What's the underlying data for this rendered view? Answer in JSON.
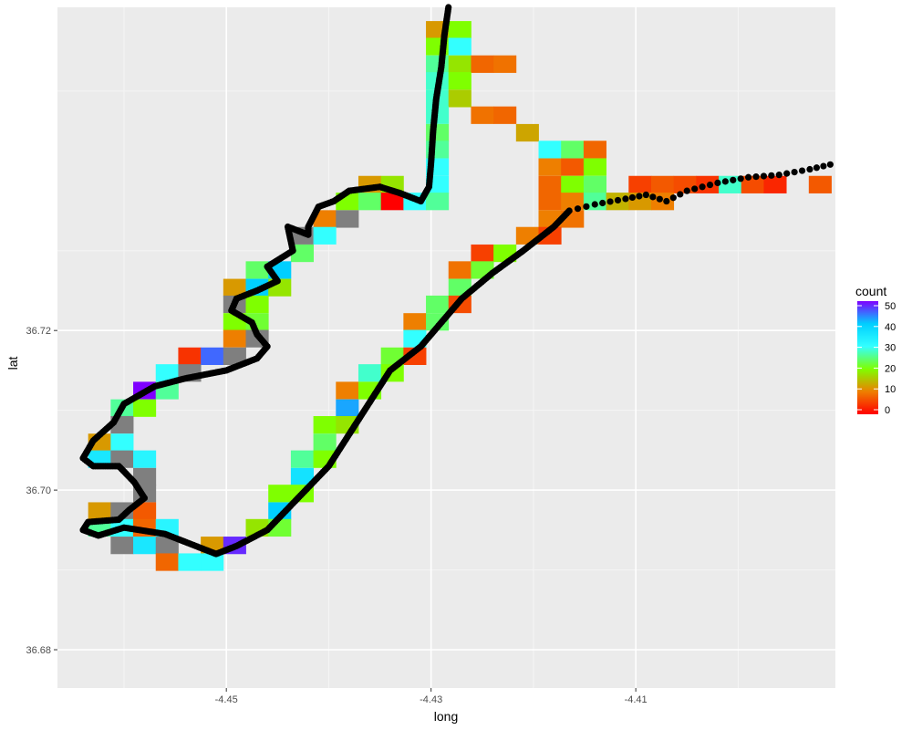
{
  "chart_data": {
    "type": "heatmap",
    "title": "",
    "xlabel": "long",
    "ylabel": "lat",
    "xlim": [
      -4.4665,
      -4.3905
    ],
    "ylim": [
      36.6752,
      36.7605
    ],
    "x_ticks": [
      -4.45,
      -4.43,
      -4.41
    ],
    "x_tick_labels": [
      "-4.45",
      "-4.43",
      "-4.41"
    ],
    "y_ticks": [
      36.68,
      36.7,
      36.72
    ],
    "y_tick_labels": [
      "36.68",
      "36.70",
      "36.72"
    ],
    "grid": true,
    "tile_width": 0.0022,
    "tile_height": 0.00215,
    "na_color": "#7f7f7f",
    "legend": {
      "title": "count",
      "placement": "right",
      "min": 0,
      "max": 50,
      "breaks": [
        0,
        10,
        20,
        30,
        40,
        50
      ],
      "break_labels": [
        "0",
        "10",
        "20",
        "30",
        "40",
        "50"
      ],
      "colors": [
        "#ff0000",
        "#ee7f00",
        "#7fff00",
        "#33ffff",
        "#00cfff",
        "#7f00ff"
      ]
    },
    "tiles": [
      [
        -4.4294,
        36.7577,
        12
      ],
      [
        -4.4272,
        36.7577,
        20
      ],
      [
        -4.4294,
        36.7556,
        20
      ],
      [
        -4.4272,
        36.7556,
        30
      ],
      [
        -4.4294,
        36.7534,
        26
      ],
      [
        -4.4272,
        36.7534,
        18
      ],
      [
        -4.425,
        36.7534,
        8
      ],
      [
        -4.4228,
        36.7534,
        9
      ],
      [
        -4.4294,
        36.7513,
        28
      ],
      [
        -4.4272,
        36.7513,
        20
      ],
      [
        -4.4294,
        36.7491,
        28
      ],
      [
        -4.4272,
        36.7491,
        16
      ],
      [
        -4.4294,
        36.747,
        28
      ],
      [
        -4.425,
        36.747,
        9
      ],
      [
        -4.4228,
        36.747,
        8
      ],
      [
        -4.4294,
        36.7448,
        24
      ],
      [
        -4.4206,
        36.7448,
        13
      ],
      [
        -4.4294,
        36.7427,
        26
      ],
      [
        -4.4184,
        36.7427,
        30
      ],
      [
        -4.4162,
        36.7427,
        24
      ],
      [
        -4.414,
        36.7427,
        8
      ],
      [
        -4.4294,
        36.7405,
        30
      ],
      [
        -4.4184,
        36.7405,
        10
      ],
      [
        -4.4162,
        36.7405,
        7
      ],
      [
        -4.414,
        36.7405,
        20
      ],
      [
        -4.436,
        36.7383,
        12
      ],
      [
        -4.4338,
        36.7383,
        18
      ],
      [
        -4.4294,
        36.7383,
        30
      ],
      [
        -4.4184,
        36.7383,
        8
      ],
      [
        -4.4162,
        36.7383,
        20
      ],
      [
        -4.414,
        36.7383,
        24
      ],
      [
        -4.4096,
        36.7383,
        5
      ],
      [
        -4.4074,
        36.7383,
        7
      ],
      [
        -4.4052,
        36.7383,
        6
      ],
      [
        -4.403,
        36.7383,
        4
      ],
      [
        -4.4008,
        36.7383,
        28
      ],
      [
        -4.3986,
        36.7383,
        6
      ],
      [
        -4.3964,
        36.7383,
        3
      ],
      [
        -4.392,
        36.7383,
        7
      ],
      [
        -4.4382,
        36.7362,
        20
      ],
      [
        -4.436,
        36.7362,
        24
      ],
      [
        -4.4338,
        36.7362,
        0
      ],
      [
        -4.4316,
        36.7362,
        30
      ],
      [
        -4.4294,
        36.7362,
        26
      ],
      [
        -4.4184,
        36.7362,
        8
      ],
      [
        -4.4162,
        36.7362,
        10
      ],
      [
        -4.414,
        36.7362,
        26
      ],
      [
        -4.4118,
        36.7362,
        14
      ],
      [
        -4.4096,
        36.7362,
        12
      ],
      [
        -4.4074,
        36.7362,
        10
      ],
      [
        -4.4404,
        36.734,
        10
      ],
      [
        -4.4382,
        36.734,
        "NA"
      ],
      [
        -4.4184,
        36.734,
        10
      ],
      [
        -4.4162,
        36.734,
        9
      ],
      [
        -4.4426,
        36.7319,
        "NA"
      ],
      [
        -4.4404,
        36.7319,
        30
      ],
      [
        -4.4206,
        36.7319,
        10
      ],
      [
        -4.4184,
        36.7319,
        5
      ],
      [
        -4.4426,
        36.7297,
        24
      ],
      [
        -4.425,
        36.7297,
        5
      ],
      [
        -4.4228,
        36.7297,
        20
      ],
      [
        -4.447,
        36.7276,
        24
      ],
      [
        -4.4448,
        36.7276,
        40
      ],
      [
        -4.4272,
        36.7276,
        9
      ],
      [
        -4.425,
        36.7276,
        22
      ],
      [
        -4.4492,
        36.7254,
        12
      ],
      [
        -4.447,
        36.7254,
        40
      ],
      [
        -4.4448,
        36.7254,
        18
      ],
      [
        -4.4272,
        36.7254,
        24
      ],
      [
        -4.4492,
        36.7233,
        "NA"
      ],
      [
        -4.447,
        36.7233,
        20
      ],
      [
        -4.4294,
        36.7233,
        24
      ],
      [
        -4.4272,
        36.7233,
        6
      ],
      [
        -4.4492,
        36.7211,
        20
      ],
      [
        -4.447,
        36.7211,
        22
      ],
      [
        -4.4316,
        36.7211,
        10
      ],
      [
        -4.4294,
        36.7211,
        24
      ],
      [
        -4.4492,
        36.719,
        10
      ],
      [
        -4.447,
        36.719,
        "NA"
      ],
      [
        -4.4316,
        36.719,
        30
      ],
      [
        -4.4536,
        36.7168,
        4
      ],
      [
        -4.4514,
        36.7168,
        45
      ],
      [
        -4.4492,
        36.7168,
        "NA"
      ],
      [
        -4.4338,
        36.7168,
        22
      ],
      [
        -4.4316,
        36.7168,
        5
      ],
      [
        -4.4558,
        36.7147,
        30
      ],
      [
        -4.4536,
        36.7147,
        "NA"
      ],
      [
        -4.436,
        36.7147,
        28
      ],
      [
        -4.4338,
        36.7147,
        20
      ],
      [
        -4.458,
        36.7125,
        50
      ],
      [
        -4.4558,
        36.7125,
        26
      ],
      [
        -4.4382,
        36.7125,
        10
      ],
      [
        -4.436,
        36.7125,
        20
      ],
      [
        -4.4602,
        36.7103,
        26
      ],
      [
        -4.458,
        36.7103,
        20
      ],
      [
        -4.4382,
        36.7103,
        42
      ],
      [
        -4.4602,
        36.7082,
        "NA"
      ],
      [
        -4.4404,
        36.7082,
        20
      ],
      [
        -4.4382,
        36.7082,
        18
      ],
      [
        -4.4624,
        36.706,
        12
      ],
      [
        -4.4602,
        36.706,
        30
      ],
      [
        -4.4404,
        36.706,
        24
      ],
      [
        -4.4624,
        36.7039,
        35
      ],
      [
        -4.4602,
        36.7039,
        "NA"
      ],
      [
        -4.458,
        36.7039,
        32
      ],
      [
        -4.4426,
        36.7039,
        26
      ],
      [
        -4.4404,
        36.7039,
        20
      ],
      [
        -4.458,
        36.7017,
        "NA"
      ],
      [
        -4.4426,
        36.7017,
        36
      ],
      [
        -4.458,
        36.6996,
        "NA"
      ],
      [
        -4.4448,
        36.6996,
        20
      ],
      [
        -4.4426,
        36.6996,
        20
      ],
      [
        -4.4624,
        36.6974,
        12
      ],
      [
        -4.4602,
        36.6974,
        "NA"
      ],
      [
        -4.458,
        36.6974,
        7
      ],
      [
        -4.4448,
        36.6974,
        40
      ],
      [
        -4.4624,
        36.6953,
        26
      ],
      [
        -4.4602,
        36.6953,
        30
      ],
      [
        -4.458,
        36.6953,
        8
      ],
      [
        -4.4558,
        36.6953,
        32
      ],
      [
        -4.447,
        36.6953,
        18
      ],
      [
        -4.4448,
        36.6953,
        22
      ],
      [
        -4.4602,
        36.6931,
        "NA"
      ],
      [
        -4.458,
        36.6931,
        35
      ],
      [
        -4.4558,
        36.6931,
        "NA"
      ],
      [
        -4.4514,
        36.6931,
        12
      ],
      [
        -4.4492,
        36.6931,
        48
      ],
      [
        -4.4558,
        36.691,
        8
      ],
      [
        -4.4536,
        36.691,
        30
      ],
      [
        -4.4514,
        36.691,
        30
      ]
    ],
    "track": [
      [
        -4.4283,
        36.7605
      ],
      [
        -4.4287,
        36.757
      ],
      [
        -4.429,
        36.753
      ],
      [
        -4.4295,
        36.749
      ],
      [
        -4.4298,
        36.745
      ],
      [
        -4.43,
        36.741
      ],
      [
        -4.4302,
        36.738
      ],
      [
        -4.431,
        36.7362
      ],
      [
        -4.433,
        36.7372
      ],
      [
        -4.435,
        36.738
      ],
      [
        -4.438,
        36.7375
      ],
      [
        -4.4395,
        36.7362
      ],
      [
        -4.441,
        36.7355
      ],
      [
        -4.442,
        36.733
      ],
      [
        -4.442,
        36.732
      ],
      [
        -4.444,
        36.733
      ],
      [
        -4.4435,
        36.73
      ],
      [
        -4.446,
        36.728
      ],
      [
        -4.445,
        36.7262
      ],
      [
        -4.447,
        36.725
      ],
      [
        -4.449,
        36.724
      ],
      [
        -4.4495,
        36.7225
      ],
      [
        -4.4475,
        36.721
      ],
      [
        -4.447,
        36.7195
      ],
      [
        -4.446,
        36.718
      ],
      [
        -4.447,
        36.7165
      ],
      [
        -4.45,
        36.715
      ],
      [
        -4.454,
        36.714
      ],
      [
        -4.457,
        36.713
      ],
      [
        -4.46,
        36.7108
      ],
      [
        -4.461,
        36.7085
      ],
      [
        -4.463,
        36.7062
      ],
      [
        -4.464,
        36.704
      ],
      [
        -4.463,
        36.703
      ],
      [
        -4.4605,
        36.703
      ],
      [
        -4.459,
        36.701
      ],
      [
        -4.458,
        36.699
      ],
      [
        -4.4595,
        36.6975
      ],
      [
        -4.4605,
        36.6963
      ],
      [
        -4.4635,
        36.696
      ],
      [
        -4.464,
        36.695
      ],
      [
        -4.4625,
        36.6943
      ],
      [
        -4.46,
        36.6953
      ],
      [
        -4.456,
        36.6945
      ],
      [
        -4.453,
        36.693
      ],
      [
        -4.451,
        36.692
      ],
      [
        -4.449,
        36.693
      ],
      [
        -4.446,
        36.695
      ],
      [
        -4.443,
        36.699
      ],
      [
        -4.44,
        36.703
      ],
      [
        -4.438,
        36.707
      ],
      [
        -4.436,
        36.711
      ],
      [
        -4.434,
        36.715
      ],
      [
        -4.431,
        36.718
      ],
      [
        -4.429,
        36.721
      ],
      [
        -4.427,
        36.724
      ],
      [
        -4.424,
        36.7272
      ],
      [
        -4.421,
        36.73
      ],
      [
        -4.418,
        36.733
      ],
      [
        -4.4165,
        36.735
      ],
      [
        -4.414,
        36.7358
      ],
      [
        -4.411,
        36.7365
      ],
      [
        -4.409,
        36.737
      ],
      [
        -4.407,
        36.7362
      ],
      [
        -4.405,
        36.7375
      ],
      [
        -4.402,
        36.7385
      ],
      [
        -4.399,
        36.7392
      ],
      [
        -4.396,
        36.7395
      ],
      [
        -4.393,
        36.7402
      ],
      [
        -4.391,
        36.7408
      ]
    ]
  }
}
